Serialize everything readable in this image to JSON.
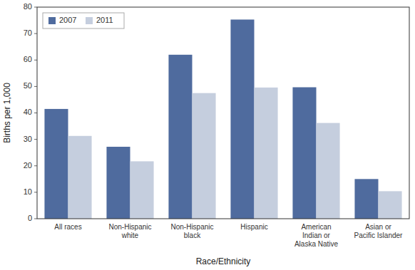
{
  "chart_data": {
    "type": "bar",
    "categories": [
      "All races",
      "Non-Hispanic\nwhite",
      "Non-Hispanic\nblack",
      "Hispanic",
      "American\nIndian or\nAlaska Native",
      "Asian or\nPacific Islander"
    ],
    "series": [
      {
        "name": "2007",
        "color": "#4f6b9e",
        "values": [
          41.5,
          27.2,
          62.0,
          75.3,
          49.7,
          15.0
        ]
      },
      {
        "name": "2011",
        "color": "#c5cede",
        "values": [
          31.3,
          21.7,
          47.5,
          49.6,
          36.2,
          10.4
        ]
      }
    ],
    "xlabel": "Race/Ethnicity",
    "ylabel": "Births per 1,000",
    "ylim": [
      0,
      80
    ],
    "yticks": [
      0,
      10,
      20,
      30,
      40,
      50,
      60,
      70,
      80
    ],
    "legend": "upper left",
    "grid": false
  }
}
